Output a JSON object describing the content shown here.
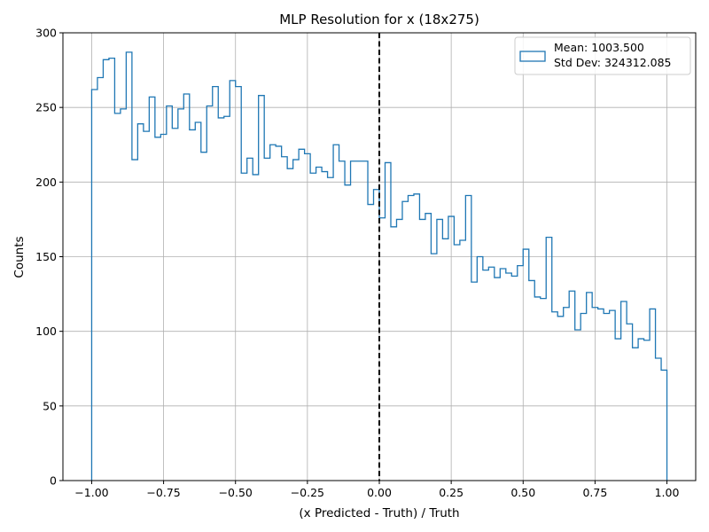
{
  "chart_data": {
    "type": "histogram",
    "title": "MLP Resolution for x (18x275)",
    "xlabel": "(x Predicted - Truth) / Truth",
    "ylabel": "Counts",
    "xlim": [
      -1.1,
      1.1
    ],
    "ylim": [
      0,
      300
    ],
    "xticks": [
      -1.0,
      -0.75,
      -0.5,
      -0.25,
      0.0,
      0.25,
      0.5,
      0.75,
      1.0
    ],
    "xtick_labels": [
      "−1.00",
      "−0.75",
      "−0.50",
      "−0.25",
      "0.00",
      "0.25",
      "0.50",
      "0.75",
      "1.00"
    ],
    "yticks": [
      0,
      50,
      100,
      150,
      200,
      250,
      300
    ],
    "ytick_labels": [
      "0",
      "50",
      "100",
      "150",
      "200",
      "250",
      "300"
    ],
    "grid": true,
    "bin_range": [
      -1.0,
      1.0
    ],
    "bin_count": 100,
    "counts": [
      262,
      270,
      282,
      283,
      246,
      249,
      287,
      215,
      239,
      234,
      257,
      230,
      232,
      251,
      236,
      249,
      259,
      235,
      240,
      220,
      251,
      264,
      243,
      244,
      268,
      264,
      206,
      216,
      205,
      258,
      216,
      225,
      224,
      217,
      209,
      215,
      222,
      219,
      206,
      210,
      207,
      203,
      225,
      214,
      198,
      214,
      214,
      214,
      185,
      195,
      176,
      213,
      170,
      175,
      187,
      191,
      192,
      175,
      179,
      152,
      175,
      162,
      177,
      158,
      161,
      191,
      133,
      150,
      141,
      143,
      136,
      142,
      139,
      137,
      144,
      155,
      134,
      123,
      122,
      163,
      113,
      110,
      116,
      127,
      101,
      112,
      126,
      116,
      115,
      112,
      114,
      95,
      120,
      105,
      89,
      95,
      94,
      115,
      82,
      74
    ],
    "series_color": "#1f77b4",
    "vline": {
      "x": 0.0,
      "style": "dashed",
      "color": "#000000"
    },
    "legend": {
      "position": "top-right",
      "lines": [
        "Mean: 1003.500",
        "Std Dev: 324312.085"
      ]
    }
  }
}
